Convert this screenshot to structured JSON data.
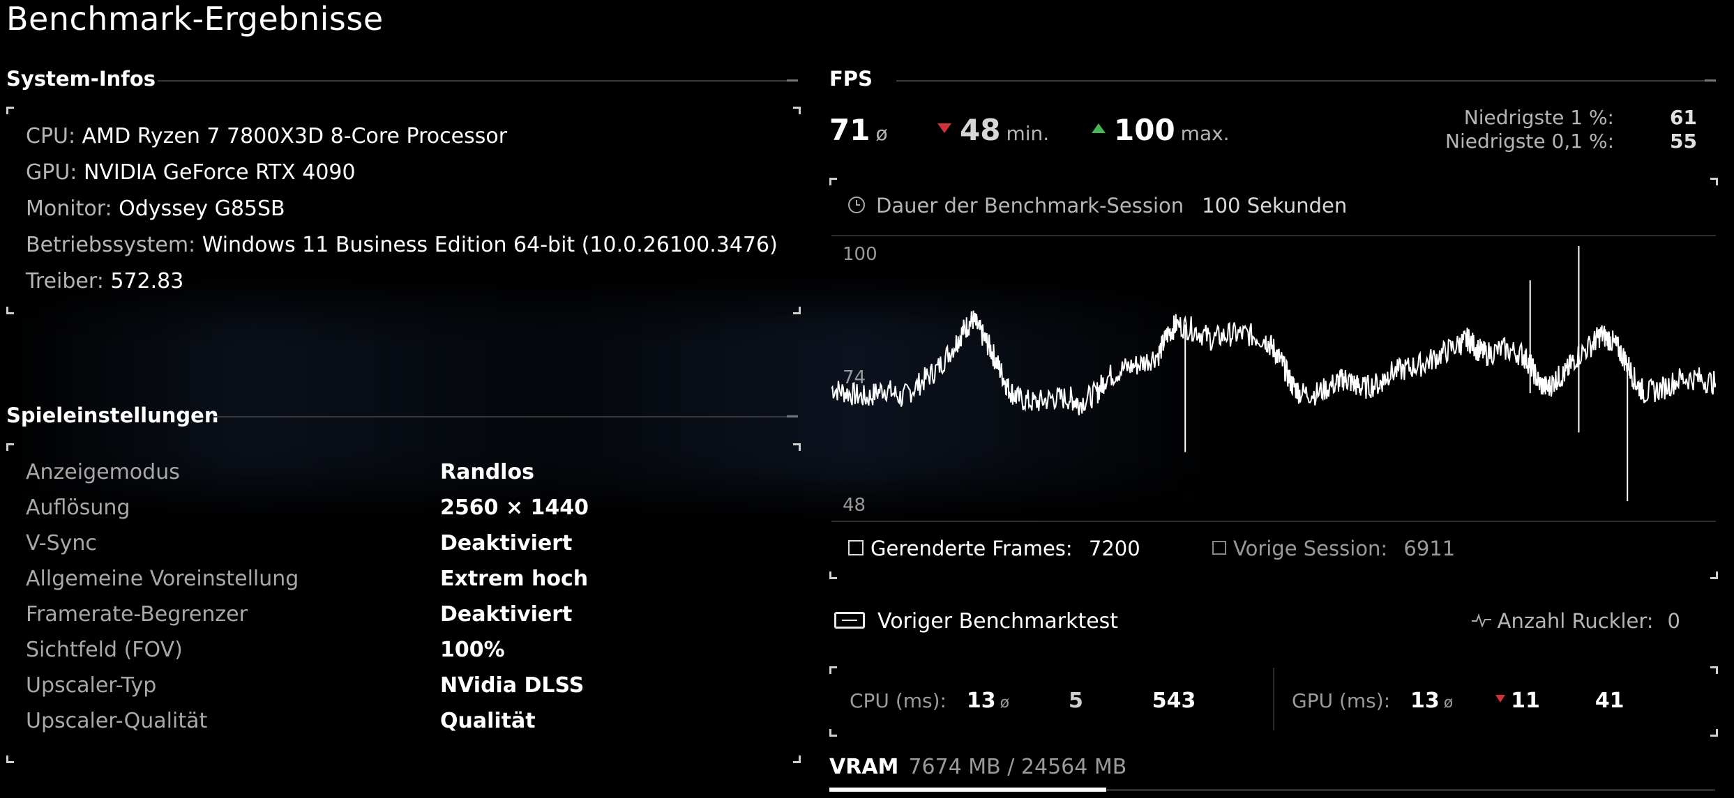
{
  "page_title": "Benchmark-Ergebnisse",
  "system": {
    "heading": "System-Infos",
    "rows": [
      {
        "label": "CPU:",
        "value": "AMD Ryzen 7 7800X3D 8-Core Processor"
      },
      {
        "label": "GPU:",
        "value": "NVIDIA GeForce RTX 4090"
      },
      {
        "label": "Monitor:",
        "value": "Odyssey G85SB"
      },
      {
        "label": "Betriebssystem:",
        "value": "Windows 11 Business Edition 64-bit (10.0.26100.3476)"
      },
      {
        "label": "Treiber:",
        "value": "572.83"
      }
    ]
  },
  "settings": {
    "heading": "Spieleinstellungen",
    "rows": [
      {
        "label": "Anzeigemodus",
        "value": "Randlos"
      },
      {
        "label": "Auflösung",
        "value": "2560 × 1440"
      },
      {
        "label": "V-Sync",
        "value": "Deaktiviert"
      },
      {
        "label": "Allgemeine Voreinstellung",
        "value": "Extrem hoch"
      },
      {
        "label": "Framerate-Begrenzer",
        "value": "Deaktiviert"
      },
      {
        "label": "Sichtfeld (FOV)",
        "value": "100%"
      },
      {
        "label": "Upscaler-Typ",
        "value": "NVidia DLSS"
      },
      {
        "label": "Upscaler-Qualität",
        "value": "Qualität"
      }
    ]
  },
  "fps": {
    "heading": "FPS",
    "avg": "71",
    "avg_suffix": "ø",
    "min": "48",
    "min_suffix": "min.",
    "max": "100",
    "max_suffix": "max.",
    "low1_label": "Niedrigste 1 %:",
    "low1_value": "61",
    "low01_label": "Niedrigste 0,1 %:",
    "low01_value": "55",
    "duration_label": "Dauer der Benchmark-Session",
    "duration_value": "100 Sekunden",
    "rendered_label": "Gerenderte Frames:",
    "rendered_value": "7200",
    "previous_label": "Vorige Session:",
    "previous_value": "6911"
  },
  "chart_data": {
    "type": "line",
    "yticks": [
      "100",
      "74",
      "48"
    ],
    "ylim": [
      48,
      100
    ],
    "xlim": [
      0,
      100
    ],
    "series": [
      {
        "values": [
          [
            0,
            71
          ],
          [
            2,
            70
          ],
          [
            4,
            69
          ],
          [
            6,
            71
          ],
          [
            8,
            69
          ],
          [
            10,
            72
          ],
          [
            12,
            75
          ],
          [
            14,
            80
          ],
          [
            15,
            83
          ],
          [
            16,
            85
          ],
          [
            17,
            82
          ],
          [
            18,
            79
          ],
          [
            19,
            75
          ],
          [
            20,
            71
          ],
          [
            21,
            69
          ],
          [
            23,
            68
          ],
          [
            25,
            69
          ],
          [
            27,
            69
          ],
          [
            28,
            68
          ],
          [
            30,
            70
          ],
          [
            31,
            73
          ],
          [
            33,
            75
          ],
          [
            35,
            76
          ],
          [
            37,
            78
          ],
          [
            38,
            82
          ],
          [
            39,
            84
          ],
          [
            41,
            83
          ],
          [
            43,
            81
          ],
          [
            45,
            82
          ],
          [
            47,
            82
          ],
          [
            49,
            81
          ],
          [
            50,
            79
          ],
          [
            51,
            76
          ],
          [
            52,
            72
          ],
          [
            53,
            70
          ],
          [
            55,
            70
          ],
          [
            57,
            72
          ],
          [
            58,
            73
          ],
          [
            59,
            72
          ],
          [
            60,
            71
          ],
          [
            62,
            72
          ],
          [
            63,
            74
          ],
          [
            65,
            75
          ],
          [
            67,
            76
          ],
          [
            69,
            78
          ],
          [
            71,
            80
          ],
          [
            72,
            81
          ],
          [
            73,
            79
          ],
          [
            74,
            78
          ],
          [
            76,
            79
          ],
          [
            78,
            78
          ],
          [
            79,
            76
          ],
          [
            80,
            72
          ],
          [
            81,
            71
          ],
          [
            82,
            73
          ],
          [
            83,
            74
          ],
          [
            84,
            77
          ],
          [
            86,
            80
          ],
          [
            87,
            82
          ],
          [
            88,
            81
          ],
          [
            89,
            79
          ],
          [
            90,
            76
          ],
          [
            91,
            72
          ],
          [
            92,
            70
          ],
          [
            94,
            71
          ],
          [
            96,
            73
          ],
          [
            98,
            73
          ],
          [
            100,
            72
          ]
        ]
      }
    ],
    "spikes": [
      {
        "x": 40.0,
        "low": 58,
        "high": 84
      },
      {
        "x": 79.0,
        "low": 70,
        "high": 93
      },
      {
        "x": 84.5,
        "low": 62,
        "high": 100
      },
      {
        "x": 90.0,
        "low": 48,
        "high": 75
      }
    ]
  },
  "previous_test": {
    "heading": "Voriger Benchmarktest",
    "stutter_label": "Anzahl Ruckler:",
    "stutter_value": "0"
  },
  "cpu_ms": {
    "label": "CPU (ms):",
    "avg": "13",
    "avg_suffix": "ø",
    "min": "5",
    "max": "543"
  },
  "gpu_ms": {
    "label": "GPU (ms):",
    "avg": "13",
    "avg_suffix": "ø",
    "min": "11",
    "max": "41"
  },
  "vram": {
    "label": "VRAM",
    "value": "7674 MB / 24564 MB",
    "used_fraction": 0.3124
  },
  "colors": {
    "accent_red": "#d0323c",
    "accent_green": "#49b356",
    "background": "#000000"
  }
}
